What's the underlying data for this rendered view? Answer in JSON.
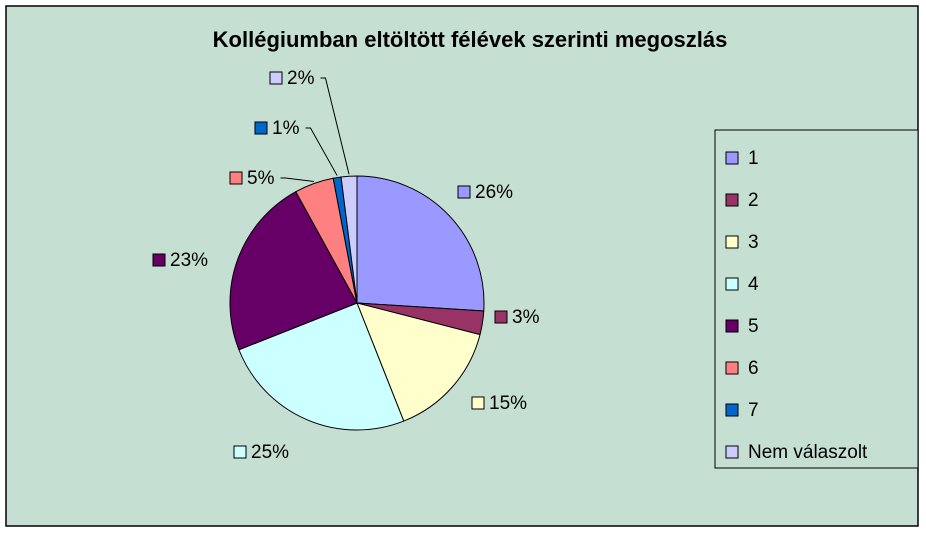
{
  "chart_data": {
    "type": "pie",
    "title": "Kollégiumban eltöltött félévek szerinti megoszlás",
    "categories": [
      "1",
      "2",
      "3",
      "4",
      "5",
      "6",
      "7",
      "Nem válaszolt"
    ],
    "values": [
      26,
      3,
      15,
      25,
      23,
      5,
      1,
      2
    ],
    "value_labels": [
      "26%",
      "3%",
      "15%",
      "25%",
      "23%",
      "5%",
      "1%",
      "2%"
    ],
    "colors": [
      "#9999ff",
      "#993366",
      "#ffffcc",
      "#ccffff",
      "#660066",
      "#ff8080",
      "#0066cc",
      "#ccccff"
    ],
    "legend": "right"
  }
}
